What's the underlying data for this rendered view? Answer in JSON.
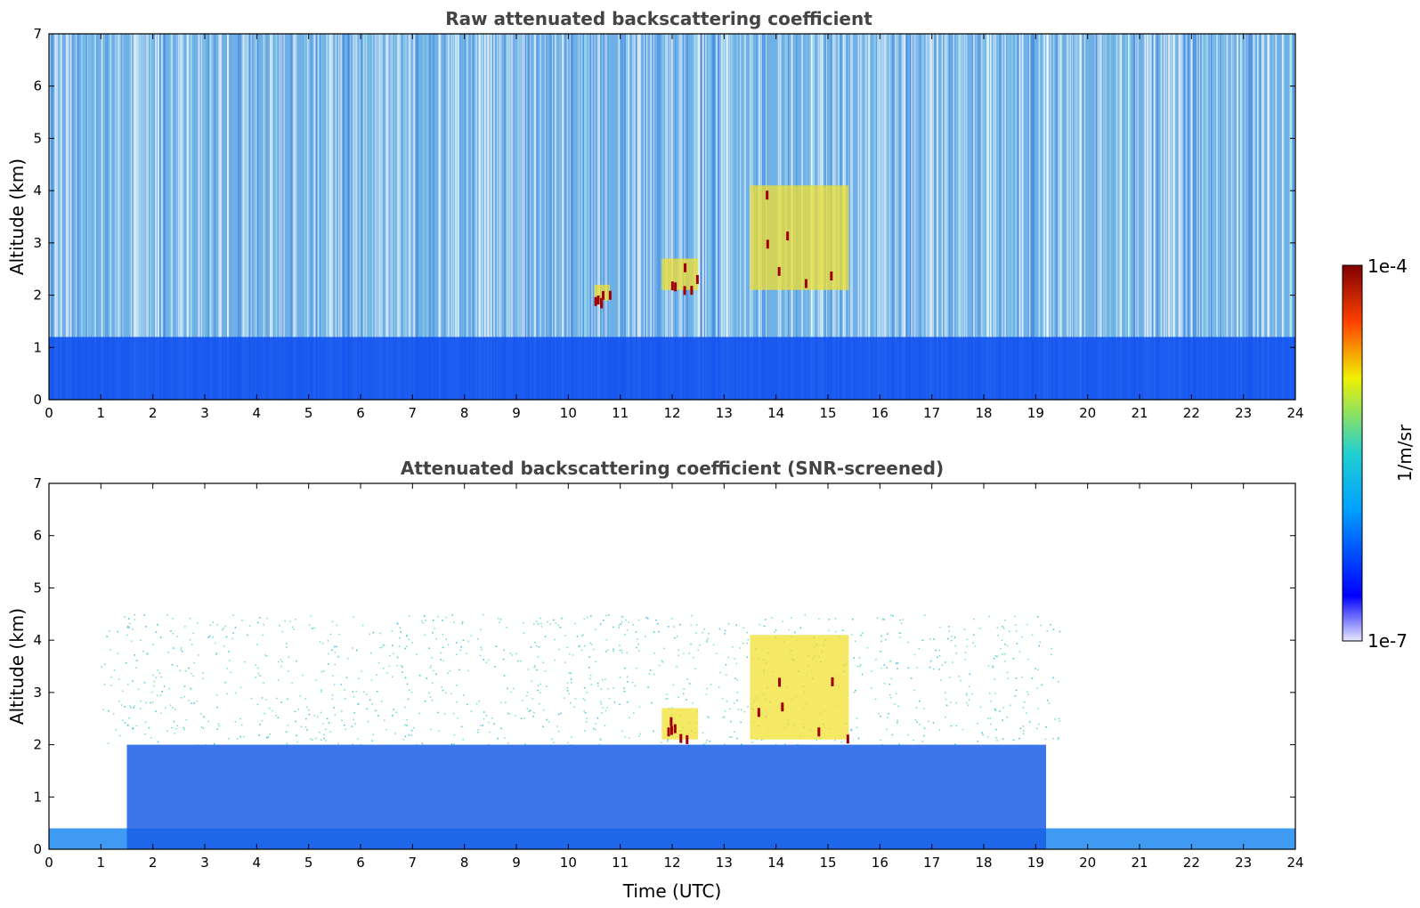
{
  "chart_data": [
    {
      "type": "heatmap",
      "title": "Raw attenuated backscattering coefficient",
      "xlabel": "",
      "ylabel": "Altitude (km)",
      "xlim": [
        0,
        24
      ],
      "ylim": [
        0,
        7
      ],
      "xticks": [
        "0",
        "1",
        "2",
        "3",
        "4",
        "5",
        "6",
        "7",
        "8",
        "9",
        "10",
        "11",
        "12",
        "13",
        "14",
        "15",
        "16",
        "17",
        "18",
        "19",
        "20",
        "21",
        "22",
        "23",
        "24"
      ],
      "yticks": [
        "0",
        "1",
        "2",
        "3",
        "4",
        "5",
        "6",
        "7"
      ],
      "grid": false,
      "features": [
        {
          "kind": "boundary-layer",
          "x_range": [
            0,
            24
          ],
          "y_range": [
            0,
            1.2
          ],
          "note": "strong return below ~1 km"
        },
        {
          "kind": "aerosol-layer",
          "x_range": [
            11.8,
            12.5
          ],
          "y_range": [
            2.1,
            2.7
          ]
        },
        {
          "kind": "aerosol-layer",
          "x_range": [
            13.5,
            15.4
          ],
          "y_range": [
            2.1,
            4.1
          ]
        },
        {
          "kind": "aerosol-layer",
          "x_range": [
            10.5,
            10.8
          ],
          "y_range": [
            1.9,
            2.2
          ]
        }
      ]
    },
    {
      "type": "heatmap",
      "title": "Attenuated backscattering coefficient (SNR-screened)",
      "xlabel": "Time (UTC)",
      "ylabel": "Altitude (km)",
      "xlim": [
        0,
        24
      ],
      "ylim": [
        0,
        7
      ],
      "xticks": [
        "0",
        "1",
        "2",
        "3",
        "4",
        "5",
        "6",
        "7",
        "8",
        "9",
        "10",
        "11",
        "12",
        "13",
        "14",
        "15",
        "16",
        "17",
        "18",
        "19",
        "20",
        "21",
        "22",
        "23",
        "24"
      ],
      "yticks": [
        "0",
        "1",
        "2",
        "3",
        "4",
        "5",
        "6",
        "7"
      ],
      "grid": false,
      "features": [
        {
          "kind": "boundary-layer",
          "x_range": [
            0,
            24
          ],
          "y_range": [
            0,
            0.4
          ],
          "note": "near-surface layer"
        },
        {
          "kind": "mixed-layer",
          "x_range": [
            1.5,
            19.2
          ],
          "y_range": [
            0,
            2.0
          ]
        },
        {
          "kind": "aerosol-layer",
          "x_range": [
            11.8,
            12.5
          ],
          "y_range": [
            2.1,
            2.7
          ]
        },
        {
          "kind": "aerosol-layer",
          "x_range": [
            13.5,
            15.4
          ],
          "y_range": [
            2.1,
            4.1
          ]
        }
      ]
    }
  ],
  "colorbar": {
    "label": "1/m/sr",
    "max_label": "1e-4",
    "min_label": "1e-7",
    "scale": "log",
    "range": [
      1e-07,
      0.0001
    ],
    "colormap": "jet",
    "colors": [
      "#e8e8ff",
      "#0000ff",
      "#00a0ff",
      "#20d0d0",
      "#f0f000",
      "#ff4000",
      "#800000"
    ]
  }
}
